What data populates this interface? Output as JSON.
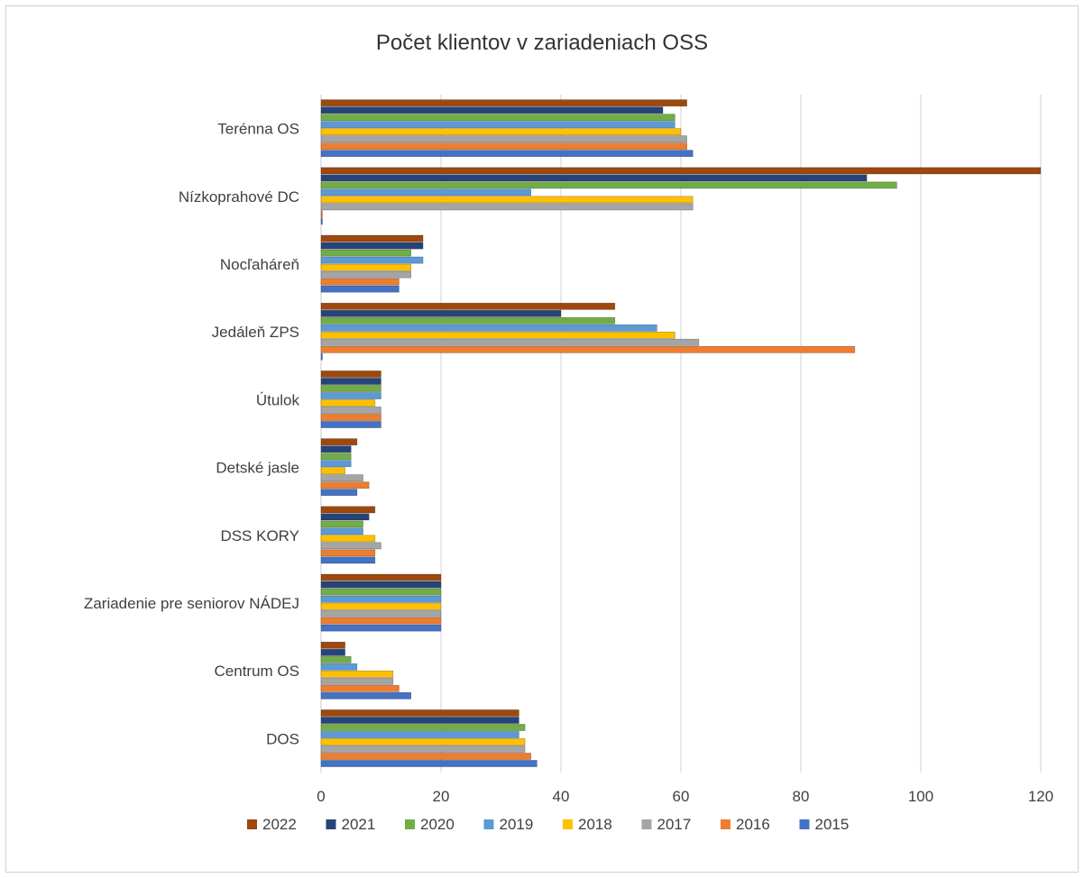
{
  "chart_data": {
    "type": "bar",
    "orientation": "horizontal",
    "title": "Počet klientov v zariadeniach OSS",
    "xlabel": "",
    "ylabel": "",
    "xlim": [
      0,
      120
    ],
    "x_ticks": [
      0,
      20,
      40,
      60,
      80,
      100,
      120
    ],
    "grid": true,
    "legend_position": "bottom",
    "categories": [
      "DOS",
      "Centrum OS",
      "Zariadenie pre seniorov NÁDEJ",
      "DSS KORY",
      "Detské jasle",
      "Útulok",
      "Jedáleň ZPS",
      "Nocľaháreň",
      "Nízkoprahové DC",
      "Terénna OS"
    ],
    "series": [
      {
        "name": "2015",
        "color": "#4472C4",
        "values": [
          36,
          15,
          20,
          9,
          6,
          10,
          0,
          13,
          0,
          62
        ]
      },
      {
        "name": "2016",
        "color": "#ED7D31",
        "values": [
          35,
          13,
          20,
          9,
          8,
          10,
          89,
          13,
          0,
          61
        ]
      },
      {
        "name": "2017",
        "color": "#A5A5A5",
        "values": [
          34,
          12,
          20,
          10,
          7,
          10,
          63,
          15,
          62,
          61
        ]
      },
      {
        "name": "2018",
        "color": "#FFC000",
        "values": [
          34,
          12,
          20,
          9,
          4,
          9,
          59,
          15,
          62,
          60
        ]
      },
      {
        "name": "2019",
        "color": "#5B9BD5",
        "values": [
          33,
          6,
          20,
          7,
          5,
          10,
          56,
          17,
          35,
          59
        ]
      },
      {
        "name": "2020",
        "color": "#70AD47",
        "values": [
          34,
          5,
          20,
          7,
          5,
          10,
          49,
          15,
          96,
          59
        ]
      },
      {
        "name": "2021",
        "color": "#264478",
        "values": [
          33,
          4,
          20,
          8,
          5,
          10,
          40,
          17,
          91,
          57
        ]
      },
      {
        "name": "2022",
        "color": "#9E480E",
        "values": [
          33,
          4,
          20,
          9,
          6,
          10,
          49,
          17,
          120,
          61
        ]
      }
    ],
    "legend_order": [
      "2022",
      "2021",
      "2020",
      "2019",
      "2018",
      "2017",
      "2016",
      "2015"
    ]
  }
}
